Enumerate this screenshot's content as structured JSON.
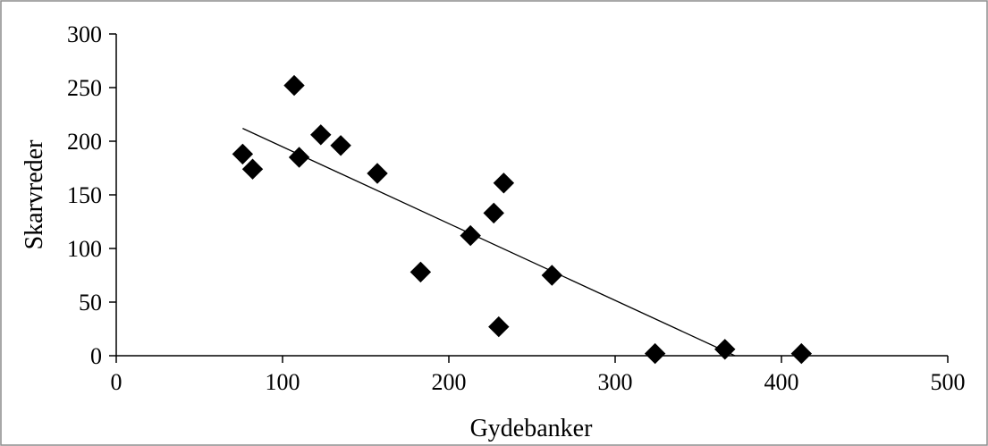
{
  "chart_data": {
    "type": "scatter",
    "title": "",
    "xlabel": "Gydebanker",
    "ylabel": "Skarvreder",
    "xlim": [
      0,
      500
    ],
    "ylim": [
      0,
      300
    ],
    "xticks": [
      0,
      100,
      200,
      300,
      400,
      500
    ],
    "yticks": [
      0,
      50,
      100,
      150,
      200,
      250,
      300
    ],
    "grid": false,
    "legend": "none",
    "marker": "diamond",
    "marker_color": "#000000",
    "series": [
      {
        "points": [
          {
            "x": 76,
            "y": 188
          },
          {
            "x": 82,
            "y": 174
          },
          {
            "x": 107,
            "y": 252
          },
          {
            "x": 110,
            "y": 185
          },
          {
            "x": 123,
            "y": 206
          },
          {
            "x": 135,
            "y": 196
          },
          {
            "x": 157,
            "y": 170
          },
          {
            "x": 183,
            "y": 78
          },
          {
            "x": 213,
            "y": 112
          },
          {
            "x": 227,
            "y": 133
          },
          {
            "x": 230,
            "y": 27
          },
          {
            "x": 233,
            "y": 161
          },
          {
            "x": 262,
            "y": 75
          },
          {
            "x": 324,
            "y": 2
          },
          {
            "x": 366,
            "y": 6
          },
          {
            "x": 412,
            "y": 2
          }
        ]
      }
    ],
    "trendline": {
      "type": "linear",
      "from": {
        "x": 76,
        "y": 212
      },
      "to": {
        "x": 372,
        "y": 0
      }
    }
  }
}
